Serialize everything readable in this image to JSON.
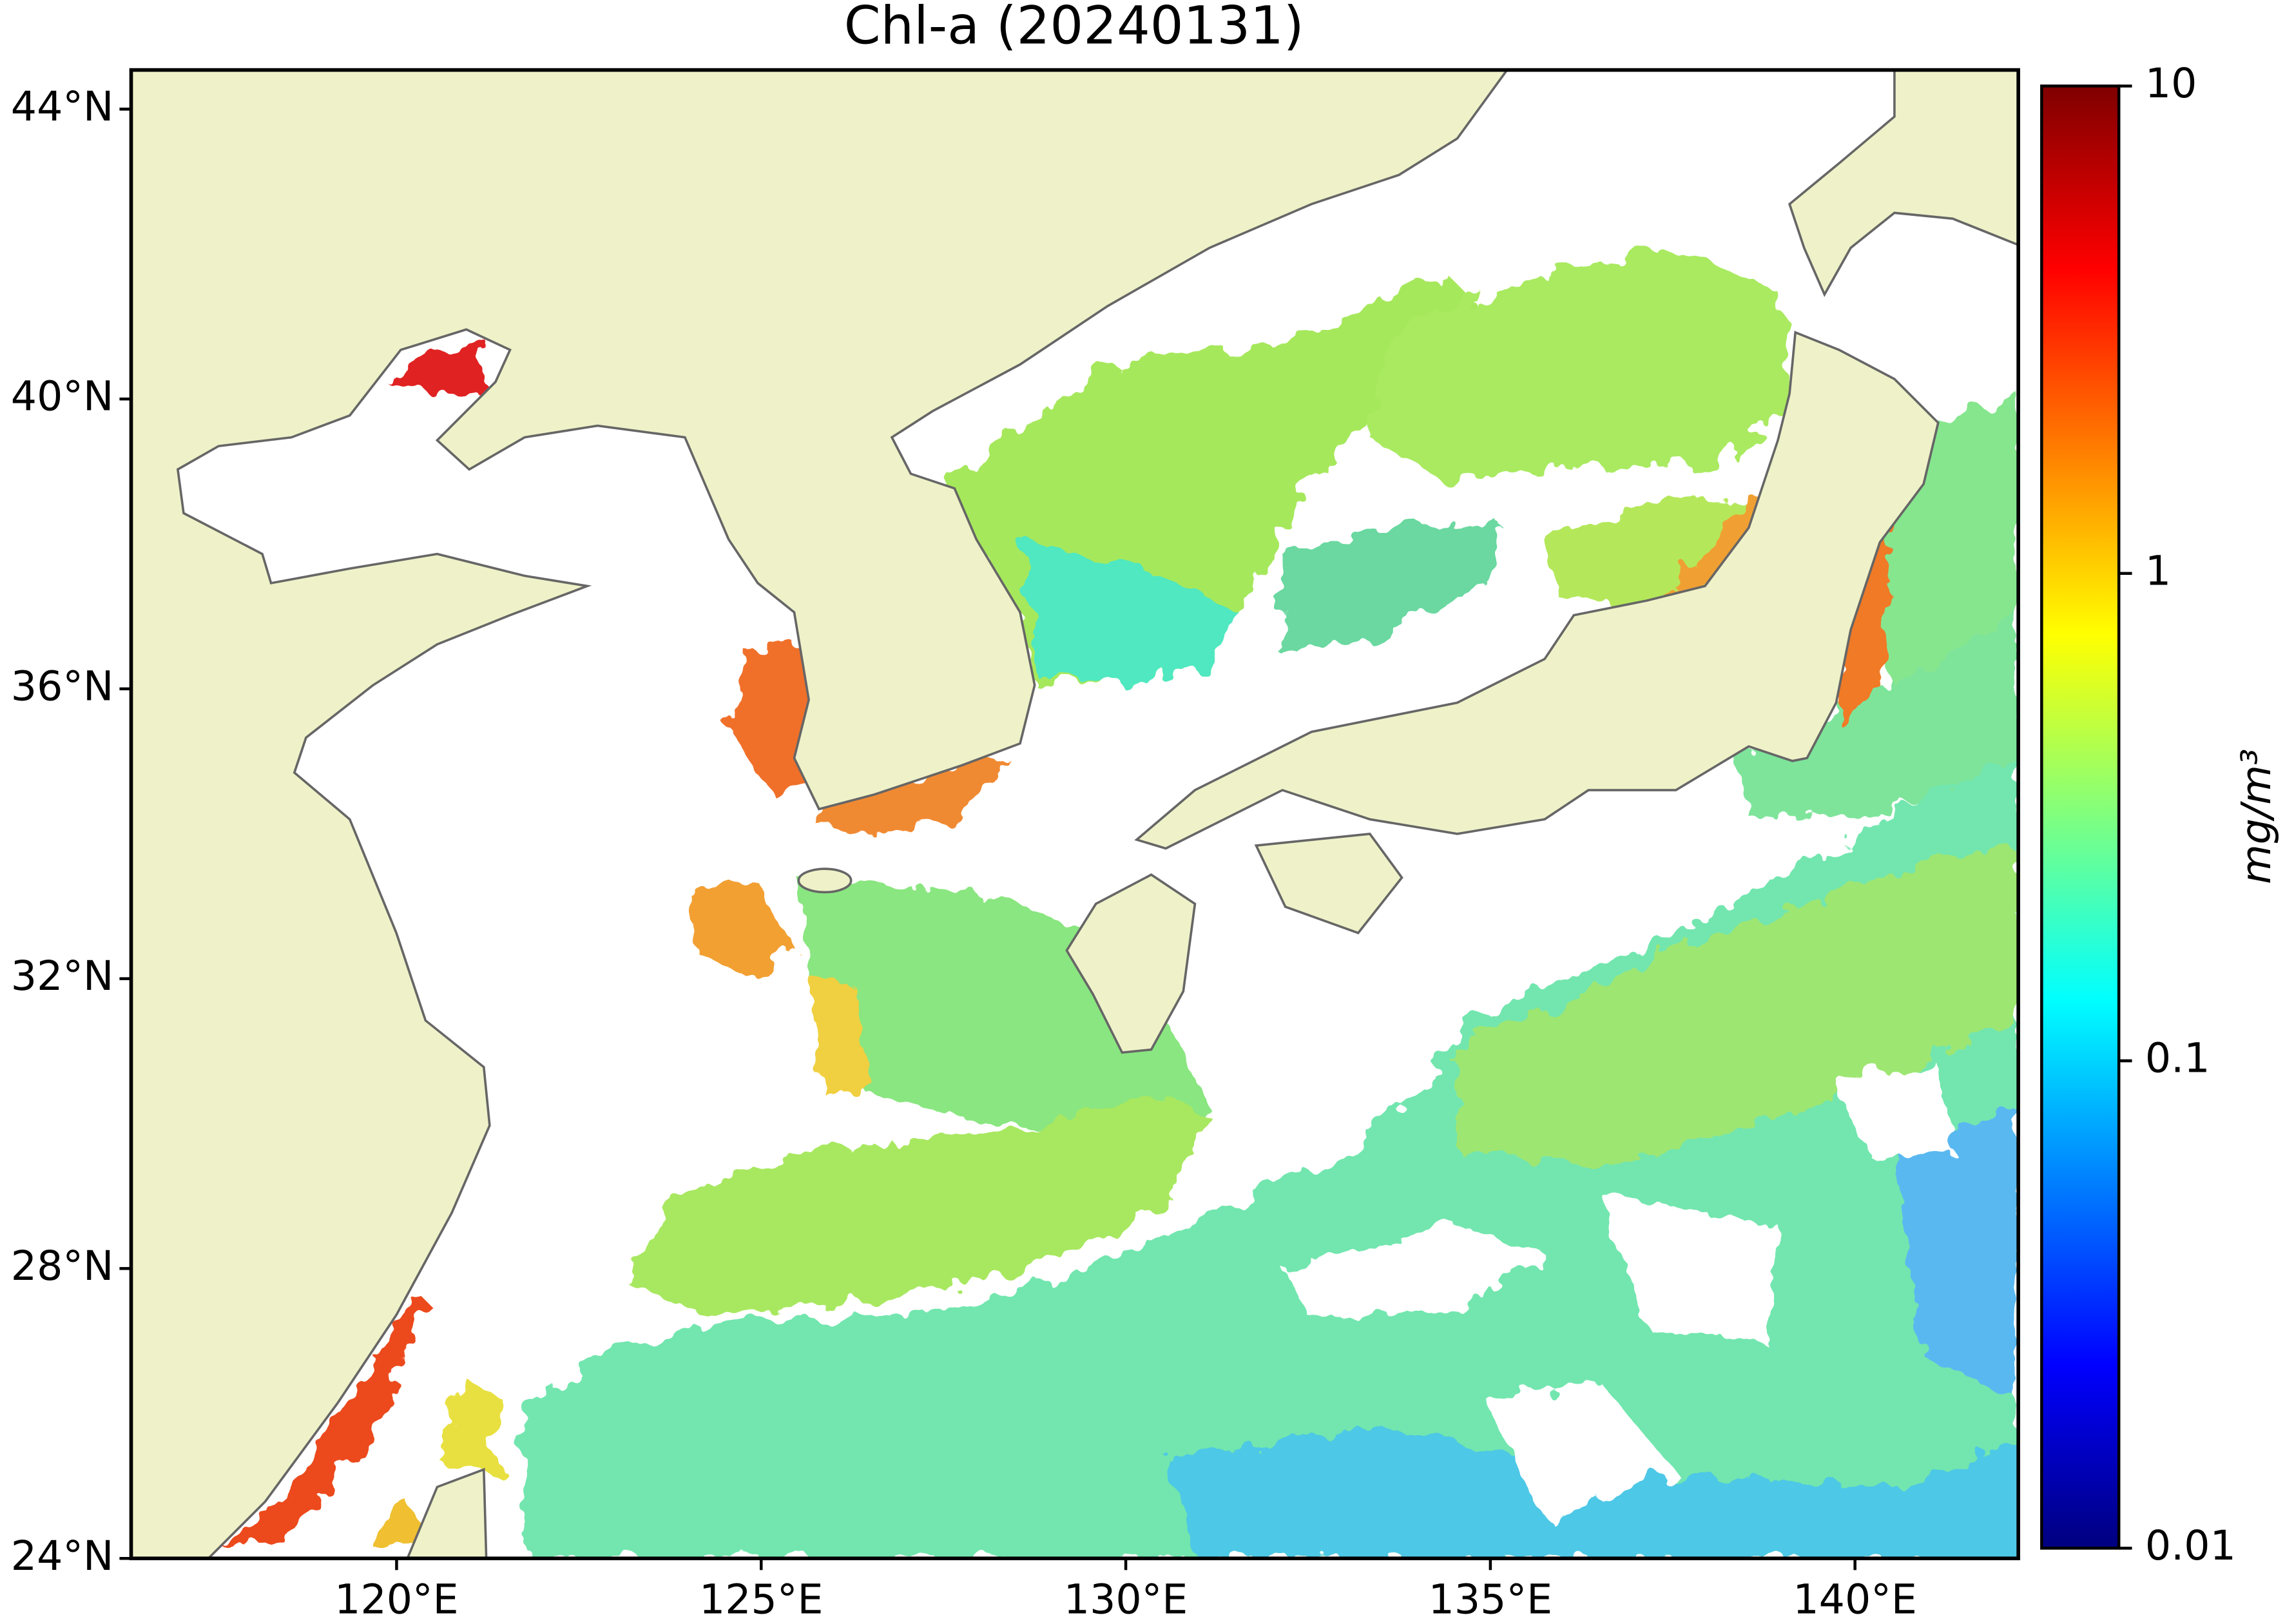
{
  "chart_data": {
    "type": "map",
    "title": "Chl-a (20240131)",
    "xlim": [
      116.36,
      142.24
    ],
    "xticks": [
      {
        "value": 120,
        "label": "120°E"
      },
      {
        "value": 125,
        "label": "125°E"
      },
      {
        "value": 130,
        "label": "130°E"
      },
      {
        "value": 135,
        "label": "135°E"
      },
      {
        "value": 140,
        "label": "140°E"
      }
    ],
    "ylim": [
      24,
      44.54
    ],
    "yticks": [
      {
        "value": 24,
        "label": "24°N"
      },
      {
        "value": 28,
        "label": "28°N"
      },
      {
        "value": 32,
        "label": "32°N"
      },
      {
        "value": 36,
        "label": "36°N"
      },
      {
        "value": 40,
        "label": "40°N"
      },
      {
        "value": 44,
        "label": "44°N"
      }
    ],
    "colorbar_label": "mg/m³",
    "colorbar_scale": "log",
    "clim": [
      0.01,
      10
    ],
    "cticks": [
      0.01,
      0.1,
      1,
      10
    ],
    "colormap": [
      "#00007f",
      "#0000ff",
      "#007fff",
      "#00ffff",
      "#7fff7f",
      "#ffff00",
      "#ff7f00",
      "#ff0000",
      "#7f0000"
    ]
  }
}
